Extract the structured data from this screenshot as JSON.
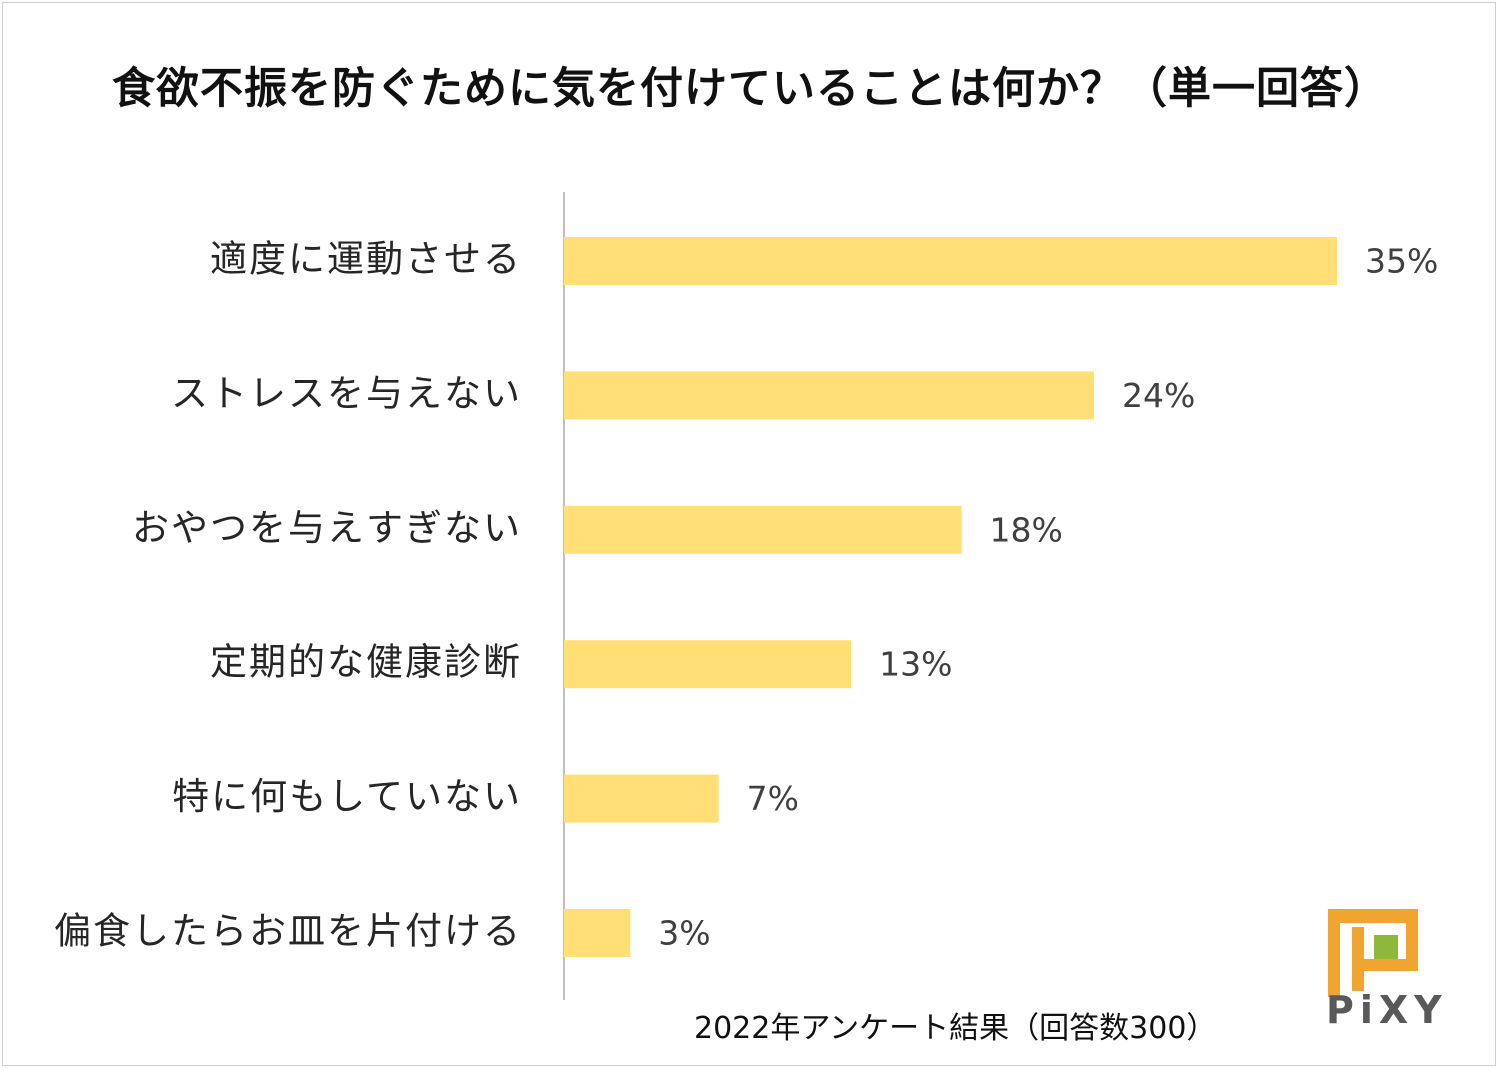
{
  "chart_data": {
    "type": "bar",
    "orientation": "horizontal",
    "title": "食欲不振を防ぐために気を付けていることは何か？（単一回答）",
    "categories": [
      "適度に運動させる",
      "ストレスを与えない",
      "おやつを与えすぎない",
      "定期的な健康診断",
      "特に何もしていない",
      "偏食したらお皿を片付ける"
    ],
    "values": [
      35,
      24,
      18,
      13,
      7,
      3
    ],
    "value_labels": [
      "35%",
      "24%",
      "18%",
      "13%",
      "7%",
      "3%"
    ],
    "unit": "%",
    "xlim": [
      0,
      35
    ],
    "grid": false,
    "bar_color": "#FFDF76"
  },
  "footnote": "2022年アンケート結果（回答数300）",
  "logo": {
    "text": "PiXY",
    "icon": "pixy-p-logo-icon",
    "colors": {
      "outer": "#F0A531",
      "inner": "#8DB83A",
      "text": "#595959"
    }
  }
}
